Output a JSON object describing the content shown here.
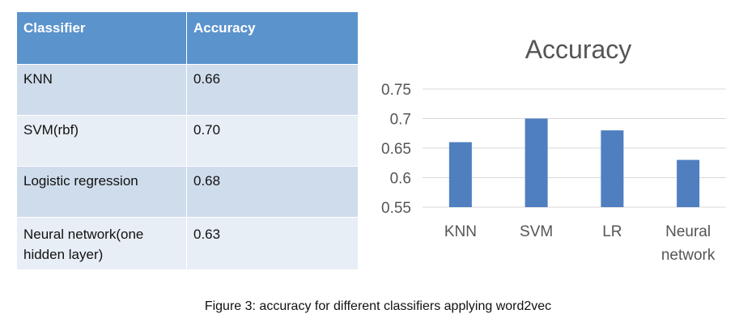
{
  "table": {
    "headers": [
      "Classifier",
      "Accuracy"
    ],
    "rows": [
      [
        "KNN",
        "0.66"
      ],
      [
        "SVM(rbf)",
        "0.70"
      ],
      [
        "Logistic regression",
        "0.68"
      ],
      [
        "Neural network(one hidden layer)",
        "0.63"
      ]
    ]
  },
  "chart_data": {
    "type": "bar",
    "title": "Accuracy",
    "categories": [
      "KNN",
      "SVM",
      "LR",
      "Neural network"
    ],
    "category_lines": [
      [
        "KNN"
      ],
      [
        "SVM"
      ],
      [
        "LR"
      ],
      [
        "Neural",
        "network"
      ]
    ],
    "values": [
      0.66,
      0.7,
      0.68,
      0.63
    ],
    "ylim": [
      0.55,
      0.75
    ],
    "yticks": [
      0.55,
      0.6,
      0.65,
      0.7,
      0.75
    ],
    "ytick_labels": [
      "0.55",
      "0.6",
      "0.65",
      "0.7",
      "0.75"
    ],
    "grid": true,
    "bar_color": "#4f7fbf",
    "grid_color": "#d9d9d9"
  },
  "caption": "Figure 3: accuracy for different classifiers applying word2vec"
}
